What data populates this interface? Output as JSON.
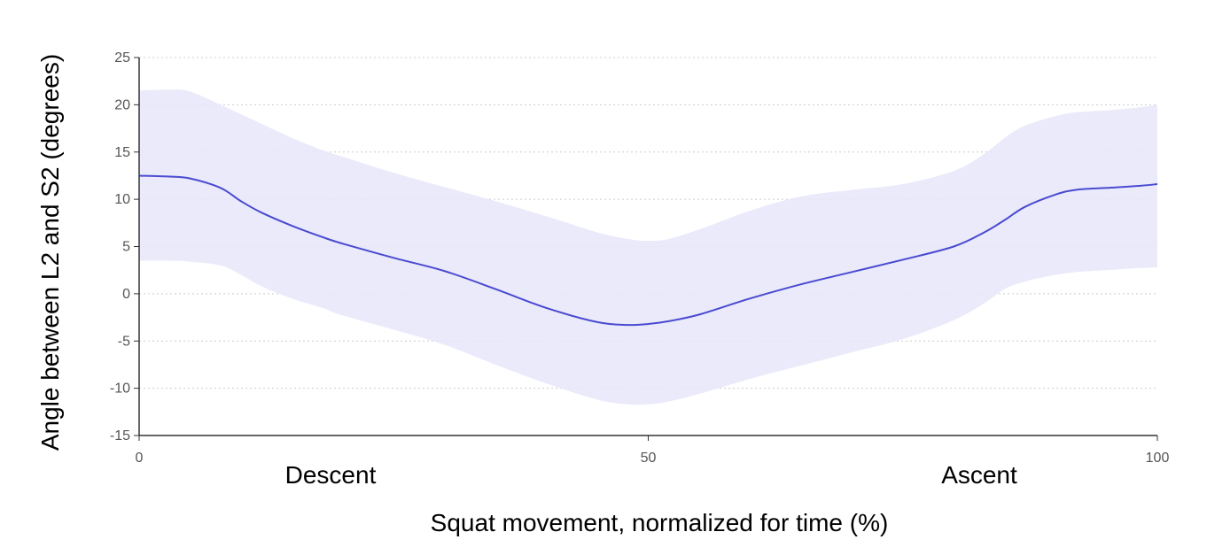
{
  "chart_data": {
    "type": "line",
    "title": "",
    "xlabel": "Squat movement, normalized for time (%)",
    "ylabel": "Angle between L2 and S2 (degrees)",
    "xlim": [
      0,
      100
    ],
    "ylim": [
      -15,
      25
    ],
    "x_ticks": [
      0,
      50,
      100
    ],
    "y_ticks": [
      25,
      20,
      15,
      10,
      5,
      0,
      -5,
      -10,
      -15
    ],
    "grid": "horizontal dotted",
    "annotations": [
      "Descent",
      "Ascent"
    ],
    "colors": {
      "mean_line": "#4a4ad0",
      "band": "#e6e6fa",
      "grid": "#cccccc",
      "axis": "#333333"
    },
    "series": [
      {
        "role": "mean",
        "x": [
          0,
          3,
          5,
          8,
          10,
          12,
          15,
          18,
          20,
          25,
          30,
          35,
          40,
          45,
          48,
          50,
          52,
          55,
          60,
          65,
          70,
          75,
          80,
          83,
          85,
          87,
          90,
          92,
          95,
          98,
          100
        ],
        "values": [
          12.5,
          12.4,
          12.2,
          11.2,
          9.8,
          8.6,
          7.2,
          6.0,
          5.3,
          3.8,
          2.4,
          0.5,
          -1.5,
          -3.0,
          -3.3,
          -3.2,
          -2.9,
          -2.2,
          -0.5,
          1.0,
          2.3,
          3.6,
          5.0,
          6.5,
          7.8,
          9.2,
          10.5,
          11.0,
          11.2,
          11.4,
          11.6
        ]
      },
      {
        "role": "upper",
        "x": [
          0,
          3,
          5,
          8,
          10,
          12,
          15,
          18,
          20,
          25,
          30,
          35,
          40,
          45,
          48,
          50,
          52,
          55,
          60,
          65,
          70,
          75,
          80,
          83,
          85,
          87,
          90,
          92,
          95,
          98,
          100
        ],
        "values": [
          21.5,
          21.6,
          21.4,
          20.0,
          19.0,
          18.0,
          16.5,
          15.2,
          14.5,
          12.8,
          11.3,
          9.8,
          8.2,
          6.5,
          5.8,
          5.6,
          5.8,
          6.8,
          8.8,
          10.3,
          11.0,
          11.6,
          13.0,
          14.8,
          16.5,
          17.8,
          18.8,
          19.2,
          19.4,
          19.7,
          20.0
        ]
      },
      {
        "role": "lower",
        "x": [
          0,
          3,
          5,
          8,
          10,
          12,
          15,
          18,
          20,
          25,
          30,
          35,
          40,
          45,
          48,
          50,
          52,
          55,
          60,
          65,
          70,
          75,
          80,
          83,
          85,
          87,
          90,
          92,
          95,
          98,
          100
        ],
        "values": [
          3.5,
          3.5,
          3.4,
          3.0,
          2.0,
          0.8,
          -0.5,
          -1.5,
          -2.3,
          -3.8,
          -5.4,
          -7.5,
          -9.5,
          -11.2,
          -11.7,
          -11.7,
          -11.4,
          -10.6,
          -9.0,
          -7.6,
          -6.2,
          -4.8,
          -2.8,
          -1.0,
          0.5,
          1.3,
          2.0,
          2.3,
          2.5,
          2.7,
          2.8
        ]
      }
    ]
  }
}
